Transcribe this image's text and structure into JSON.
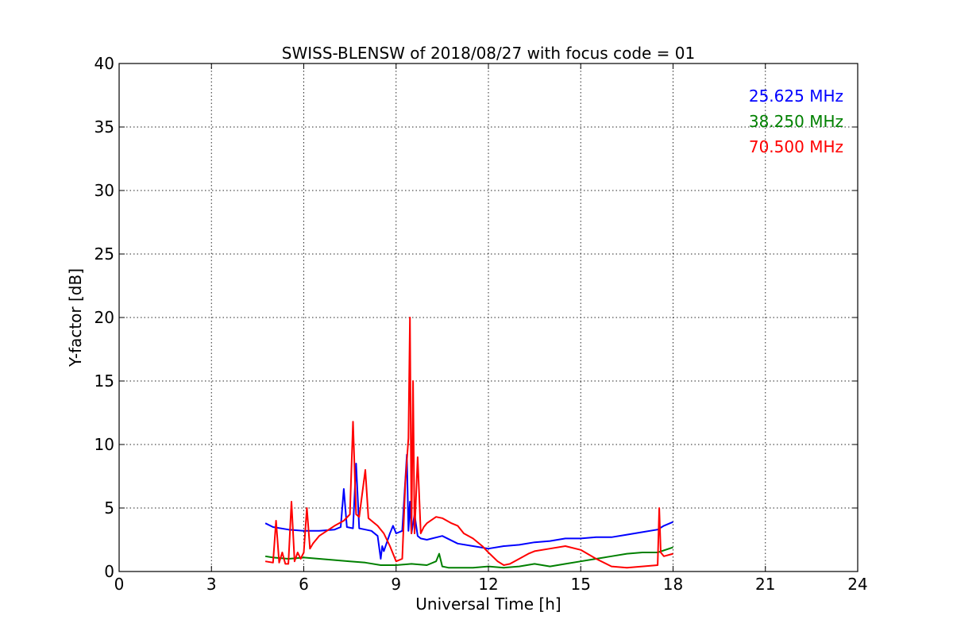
{
  "chart_data": {
    "type": "line",
    "title": "SWISS-BLENSW of 2018/08/27 with focus code = 01",
    "xlabel": "Universal Time [h]",
    "ylabel": "Y-factor [dB]",
    "xlim": [
      0,
      24
    ],
    "ylim": [
      0,
      40
    ],
    "xticks": [
      0,
      3,
      6,
      9,
      12,
      15,
      18,
      21,
      24
    ],
    "xtick_labels": [
      "0",
      "3",
      "6",
      "9",
      "12",
      "15",
      "18",
      "21",
      "24"
    ],
    "yticks": [
      0,
      5,
      10,
      15,
      20,
      25,
      30,
      35,
      40
    ],
    "ytick_labels": [
      "0",
      "5",
      "10",
      "15",
      "20",
      "25",
      "30",
      "35",
      "40"
    ],
    "grid": true,
    "legend_position": "top-right",
    "series": [
      {
        "name": "25.625 MHz",
        "color": "#0000ff",
        "x": [
          4.75,
          5.0,
          5.5,
          6.0,
          6.5,
          7.0,
          7.2,
          7.3,
          7.4,
          7.6,
          7.7,
          7.8,
          8.0,
          8.2,
          8.4,
          8.5,
          8.55,
          8.6,
          8.8,
          8.9,
          9.0,
          9.2,
          9.35,
          9.4,
          9.45,
          9.5,
          9.6,
          9.7,
          9.8,
          10.0,
          10.5,
          11.0,
          11.5,
          12.0,
          12.5,
          13.0,
          13.5,
          14.0,
          14.5,
          15.0,
          15.5,
          16.0,
          16.5,
          17.0,
          17.5,
          17.7,
          18.0
        ],
        "y": [
          3.8,
          3.5,
          3.3,
          3.2,
          3.2,
          3.3,
          3.5,
          6.5,
          3.5,
          3.4,
          8.5,
          3.4,
          3.3,
          3.2,
          2.8,
          1.0,
          2.0,
          1.6,
          3.0,
          3.6,
          3.0,
          3.2,
          9.2,
          3.2,
          5.5,
          3.0,
          4.5,
          2.8,
          2.6,
          2.5,
          2.8,
          2.2,
          2.0,
          1.8,
          2.0,
          2.1,
          2.3,
          2.4,
          2.6,
          2.6,
          2.7,
          2.7,
          2.9,
          3.1,
          3.3,
          3.6,
          3.9
        ]
      },
      {
        "name": "38.250 MHz",
        "color": "#008000",
        "x": [
          4.75,
          5.0,
          5.5,
          6.0,
          6.5,
          7.0,
          7.5,
          8.0,
          8.5,
          9.0,
          9.5,
          10.0,
          10.3,
          10.4,
          10.5,
          10.7,
          11.0,
          11.5,
          12.0,
          12.5,
          13.0,
          13.5,
          14.0,
          14.5,
          15.0,
          15.5,
          16.0,
          16.5,
          17.0,
          17.5,
          18.0
        ],
        "y": [
          1.2,
          1.1,
          1.0,
          1.1,
          1.0,
          0.9,
          0.8,
          0.7,
          0.5,
          0.5,
          0.6,
          0.5,
          0.8,
          1.4,
          0.4,
          0.3,
          0.3,
          0.3,
          0.4,
          0.3,
          0.4,
          0.6,
          0.4,
          0.6,
          0.8,
          1.0,
          1.2,
          1.4,
          1.5,
          1.5,
          1.9
        ]
      },
      {
        "name": "70.500 MHz",
        "color": "#ff0000",
        "x": [
          4.75,
          5.0,
          5.1,
          5.2,
          5.3,
          5.4,
          5.5,
          5.6,
          5.7,
          5.8,
          5.9,
          6.0,
          6.1,
          6.2,
          6.3,
          6.5,
          7.0,
          7.3,
          7.5,
          7.6,
          7.7,
          7.8,
          8.0,
          8.1,
          8.2,
          8.4,
          8.6,
          8.8,
          9.0,
          9.2,
          9.3,
          9.4,
          9.45,
          9.5,
          9.55,
          9.6,
          9.7,
          9.8,
          9.9,
          10.0,
          10.3,
          10.5,
          10.8,
          11.0,
          11.2,
          11.5,
          11.8,
          12.0,
          12.3,
          12.5,
          12.7,
          13.0,
          13.3,
          13.5,
          14.0,
          14.5,
          15.0,
          15.5,
          16.0,
          16.5,
          17.0,
          17.5,
          17.55,
          17.6,
          17.7,
          18.0
        ],
        "y": [
          0.8,
          0.7,
          4.0,
          0.7,
          1.5,
          0.6,
          0.6,
          5.5,
          0.8,
          1.5,
          1.0,
          1.5,
          5.0,
          1.8,
          2.2,
          2.8,
          3.6,
          4.0,
          4.5,
          11.8,
          4.5,
          4.3,
          8.0,
          4.2,
          4.0,
          3.6,
          3.0,
          2.0,
          0.8,
          1.0,
          7.0,
          10.5,
          20.0,
          3.0,
          15.0,
          3.0,
          9.0,
          3.0,
          3.5,
          3.8,
          4.3,
          4.2,
          3.8,
          3.6,
          3.0,
          2.6,
          2.0,
          1.5,
          0.8,
          0.5,
          0.6,
          1.0,
          1.4,
          1.6,
          1.8,
          2.0,
          1.7,
          1.0,
          0.4,
          0.3,
          0.4,
          0.5,
          5.0,
          1.5,
          1.2,
          1.4
        ]
      }
    ]
  }
}
